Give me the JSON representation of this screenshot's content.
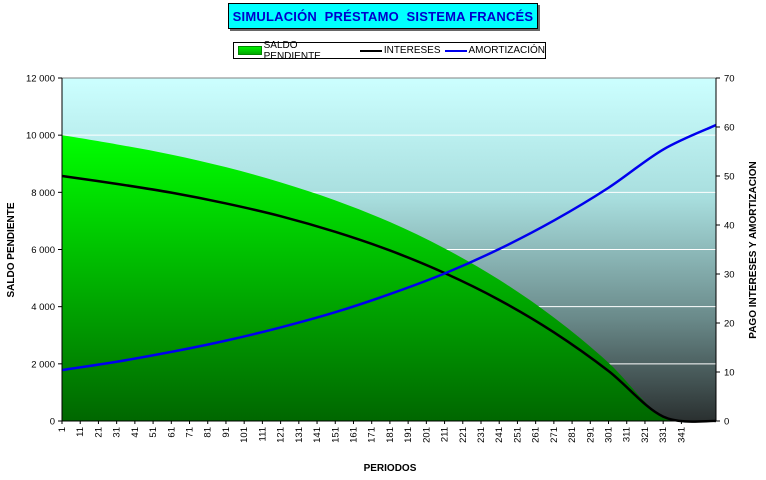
{
  "chart_data": {
    "type": "area+line",
    "title": "SIMULACIÓN  PRÉSTAMO  SISTEMA FRANCÉS",
    "xlabel": "PERIODOS",
    "ylabel_left": "SALDO PENDIENTE",
    "ylabel_right": "PAGO INTERESES Y AMORTIZACION",
    "ylim_left": [
      0,
      12000
    ],
    "ylim_right": [
      0,
      70
    ],
    "yticks_left": [
      "0",
      "2 000",
      "4 000",
      "6 000",
      "8 000",
      "10 000",
      "12 000"
    ],
    "yticks_right": [
      "0",
      "10",
      "20",
      "30",
      "40",
      "50",
      "60",
      "70"
    ],
    "xlim": [
      1,
      360
    ],
    "xticks": [
      "1",
      "11",
      "21",
      "31",
      "41",
      "51",
      "61",
      "71",
      "81",
      "91",
      "101",
      "111",
      "121",
      "131",
      "141",
      "151",
      "161",
      "171",
      "181",
      "191",
      "201",
      "211",
      "221",
      "231",
      "241",
      "251",
      "261",
      "271",
      "281",
      "291",
      "301",
      "311",
      "321",
      "331",
      "341"
    ],
    "legend_position": "top",
    "grid": "horizontal",
    "series": [
      {
        "name": "SALDO PENDIENTE",
        "axis": "left",
        "style": "area",
        "color": "#00dd00",
        "x": [
          1,
          31,
          61,
          91,
          121,
          151,
          181,
          211,
          241,
          271,
          301,
          331,
          360
        ],
        "values": [
          10000,
          9680,
          9320,
          8880,
          8350,
          7720,
          6960,
          6040,
          4940,
          3620,
          2040,
          150,
          0
        ]
      },
      {
        "name": "INTERESES",
        "axis": "right",
        "style": "line",
        "color": "#000000",
        "x": [
          1,
          31,
          61,
          91,
          121,
          151,
          181,
          211,
          241,
          271,
          301,
          331,
          360
        ],
        "values": [
          50,
          48.4,
          46.6,
          44.4,
          41.8,
          38.6,
          34.8,
          30.2,
          24.7,
          18.1,
          10.2,
          0.9,
          0
        ]
      },
      {
        "name": "AMORTIZACIÓN",
        "axis": "right",
        "style": "line",
        "color": "#0000ee",
        "x": [
          1,
          31,
          61,
          91,
          121,
          151,
          181,
          211,
          241,
          271,
          301,
          331,
          360
        ],
        "values": [
          10.4,
          12.1,
          14.1,
          16.4,
          19.1,
          22.2,
          25.9,
          30.1,
          35.1,
          40.9,
          47.6,
          55.4,
          60.4
        ]
      }
    ]
  }
}
